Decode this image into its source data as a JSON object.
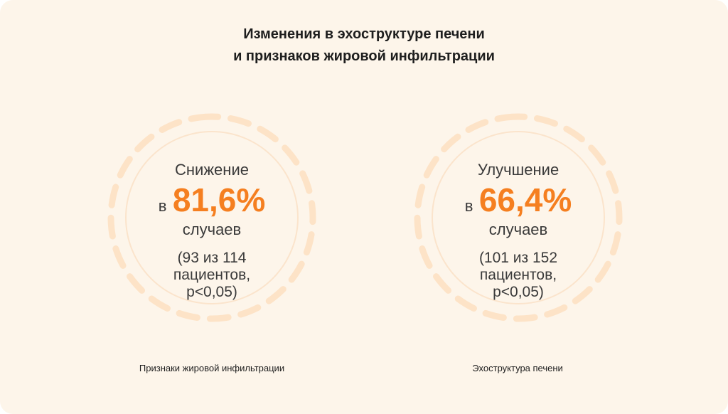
{
  "title": {
    "line1": "Изменения в эхоструктуре печени",
    "line2": "и признаков жировой инфильтрации"
  },
  "colors": {
    "background": "#fdf5ea",
    "accent": "#f57f20",
    "ring_dashes": "#fde3c7",
    "ring_inner": "#fbe4cc"
  },
  "stats": [
    {
      "verb": "Снижение",
      "prep": "в",
      "percent": "81,6%",
      "percent_value": 81.6,
      "noun": "случаев",
      "detail": [
        "(93 из 114",
        "пациентов,",
        "p<0,05)"
      ],
      "caption": "Признаки жировой инфильтрации"
    },
    {
      "verb": "Улучшение",
      "prep": "в",
      "percent": "66,4%",
      "percent_value": 66.4,
      "noun": "случаев",
      "detail": [
        "(101 из 152",
        "пациентов,",
        "p<0,05)"
      ],
      "caption": "Эхоструктура печени"
    }
  ]
}
